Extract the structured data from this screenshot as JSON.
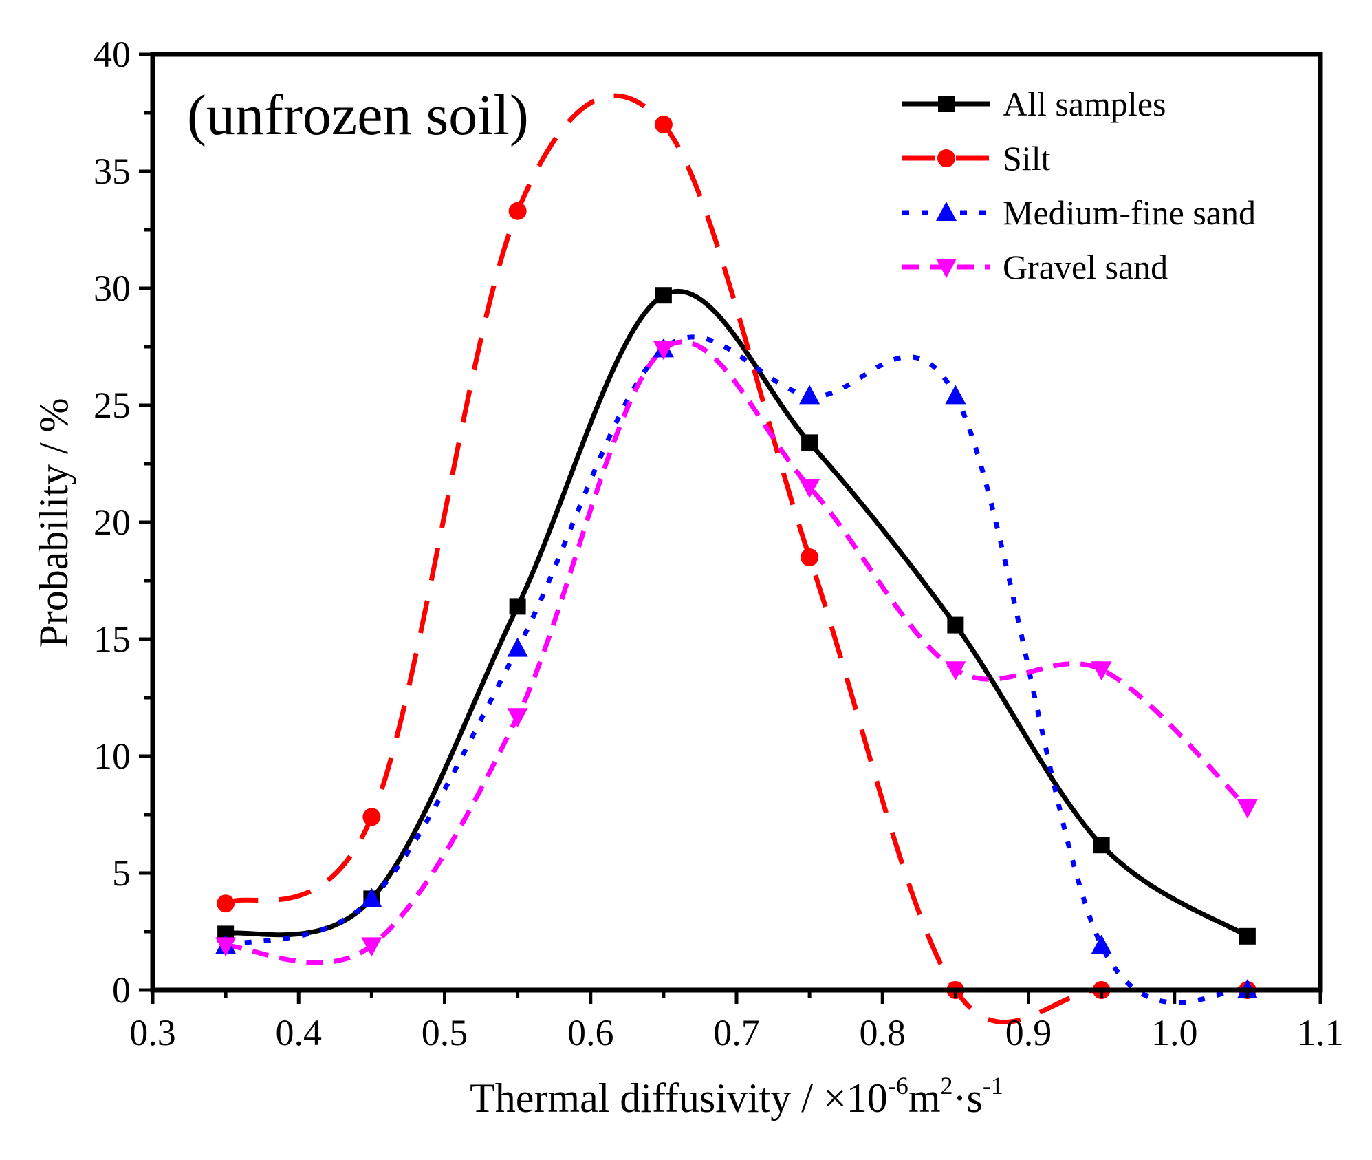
{
  "chart_data": {
    "type": "line",
    "title": "",
    "annotation": "(unfrozen soil)",
    "xlabel": {
      "main": "Thermal diffusivity / ×10",
      "exp1": "-6",
      "mid1": "m",
      "exp2": "2",
      "mid2": "·s",
      "exp3": "-1"
    },
    "ylabel": "Probability / %",
    "xlim": [
      0.3,
      1.1
    ],
    "ylim": [
      0,
      40
    ],
    "xticks": [
      "0.3",
      "0.4",
      "0.5",
      "0.6",
      "0.7",
      "0.8",
      "0.9",
      "1.0",
      "1.1"
    ],
    "yticks": [
      "0",
      "5",
      "10",
      "15",
      "20",
      "25",
      "30",
      "35",
      "40"
    ],
    "x": [
      0.35,
      0.45,
      0.55,
      0.65,
      0.75,
      0.85,
      0.95,
      1.05
    ],
    "legend_position": "top-right",
    "series": [
      {
        "name": "All samples",
        "color": "#000000",
        "marker": "square",
        "line": "solid",
        "values": [
          2.4,
          3.9,
          16.4,
          29.7,
          23.4,
          15.6,
          6.2,
          2.3
        ]
      },
      {
        "name": "Silt",
        "color": "#ff0000",
        "marker": "circle",
        "line": "dashed",
        "values": [
          3.7,
          7.4,
          33.3,
          37.0,
          18.5,
          0.0,
          0.0,
          0.0
        ]
      },
      {
        "name": "Medium-fine sand",
        "color": "#0000ff",
        "marker": "triangle-up",
        "line": "dotted",
        "values": [
          1.9,
          3.9,
          14.6,
          27.4,
          25.4,
          25.4,
          1.9,
          0.0
        ]
      },
      {
        "name": "Gravel sand",
        "color": "#ff00ff",
        "marker": "triangle-down",
        "line": "short-dashed",
        "values": [
          1.9,
          1.9,
          11.7,
          27.4,
          21.5,
          13.7,
          13.7,
          7.8
        ]
      }
    ]
  }
}
